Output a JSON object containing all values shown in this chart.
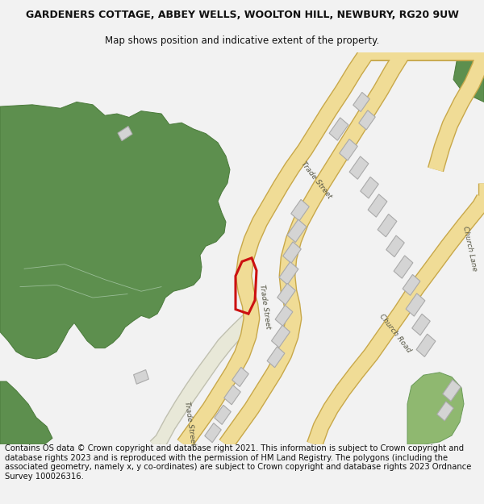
{
  "title_line1": "GARDENERS COTTAGE, ABBEY WELLS, WOOLTON HILL, NEWBURY, RG20 9UW",
  "title_line2": "Map shows position and indicative extent of the property.",
  "footer_text": "Contains OS data © Crown copyright and database right 2021. This information is subject to Crown copyright and database rights 2023 and is reproduced with the permission of HM Land Registry. The polygons (including the associated geometry, namely x, y co-ordinates) are subject to Crown copyright and database rights 2023 Ordnance Survey 100026316.",
  "bg_color": "#f2f2f2",
  "map_bg": "#ffffff",
  "road_fill": "#f0dc96",
  "road_edge": "#c8a84a",
  "road_fill2": "#f5e8a0",
  "green_dark": "#5d8f4e",
  "green_mid": "#6a9e56",
  "green_light": "#8fb870",
  "building_fill": "#d4d4d4",
  "building_edge": "#aaaaaa",
  "red_color": "#cc1111",
  "title_fs": 9,
  "sub_fs": 8.5,
  "footer_fs": 7.2,
  "label_fs": 6.5
}
